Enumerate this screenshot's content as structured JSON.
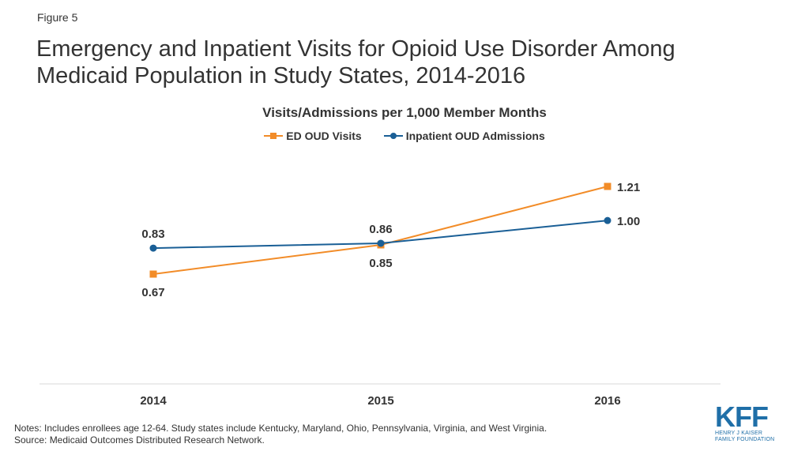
{
  "figure_label": "Figure 5",
  "title": "Emergency and Inpatient Visits for Opioid Use Disorder Among Medicaid Population in Study States, 2014-2016",
  "notes": {
    "line1": "Notes: Includes enrollees age 12-64. Study states include Kentucky, Maryland, Ohio, Pennsylvania,  Virginia, and West Virginia.",
    "line2": "Source: Medicaid Outcomes Distributed Research Network."
  },
  "logo": {
    "word": "KFF",
    "line1": "HENRY J KAISER",
    "line2": "FAMILY FOUNDATION",
    "color": "#1f6fa8"
  },
  "chart_data": {
    "type": "line",
    "title": "Visits/Admissions per 1,000 Member Months",
    "categories": [
      "2014",
      "2015",
      "2016"
    ],
    "series": [
      {
        "name": "ED OUD Visits",
        "values": [
          0.67,
          0.85,
          1.21
        ],
        "color": "#f28c28",
        "marker": "square",
        "labels": [
          "0.67",
          "0.85",
          "1.21"
        ],
        "label_position": [
          "below",
          "below",
          "right"
        ]
      },
      {
        "name": "Inpatient OUD Admissions",
        "values": [
          0.83,
          0.86,
          1.0
        ],
        "color": "#1a5f96",
        "marker": "circle",
        "labels": [
          "0.83",
          "0.86",
          "1.00"
        ],
        "label_position": [
          "above",
          "above",
          "right"
        ]
      }
    ],
    "legend": "top-center",
    "grid": false
  }
}
